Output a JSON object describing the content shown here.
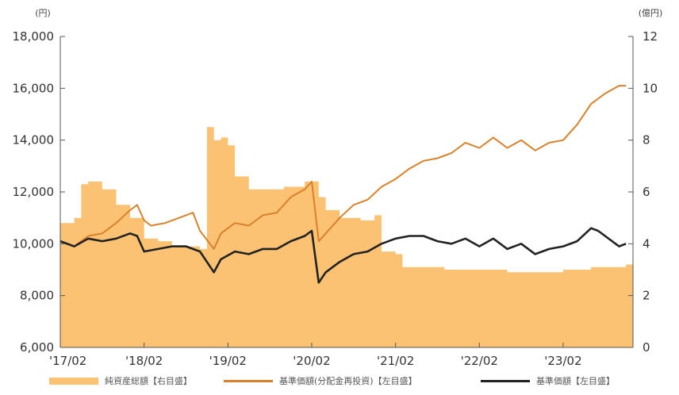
{
  "chart_data": {
    "type": "line",
    "x_ticks": [
      "'17/02",
      "'18/02",
      "'19/02",
      "'20/02",
      "'21/02",
      "'22/02",
      "'23/02"
    ],
    "y_left": {
      "unit_label": "(円)",
      "range": [
        6000,
        18000
      ],
      "ticks": [
        "6,000",
        "8,000",
        "10,000",
        "12,000",
        "14,000",
        "16,000",
        "18,000"
      ]
    },
    "y_right": {
      "unit_label": "(億円)",
      "range": [
        0,
        12
      ],
      "ticks": [
        "0",
        "2",
        "4",
        "6",
        "8",
        "10",
        "12"
      ]
    },
    "grid": false,
    "legend_position": "bottom",
    "series": [
      {
        "name": "純資産総額【右目盛】",
        "kind": "area",
        "axis": "right",
        "color": "#fbc273",
        "points": [
          [
            "2017-02",
            4.8
          ],
          [
            "2017-04",
            5.0
          ],
          [
            "2017-05",
            6.3
          ],
          [
            "2017-06",
            6.4
          ],
          [
            "2017-08",
            6.1
          ],
          [
            "2017-10",
            5.5
          ],
          [
            "2017-12",
            5.0
          ],
          [
            "2018-02",
            4.2
          ],
          [
            "2018-04",
            4.1
          ],
          [
            "2018-06",
            3.9
          ],
          [
            "2018-08",
            3.9
          ],
          [
            "2018-10",
            3.8
          ],
          [
            "2018-11",
            8.5
          ],
          [
            "2018-12",
            8.0
          ],
          [
            "2019-01",
            8.1
          ],
          [
            "2019-02",
            7.8
          ],
          [
            "2019-03",
            6.6
          ],
          [
            "2019-05",
            6.1
          ],
          [
            "2019-07",
            6.1
          ],
          [
            "2019-10",
            6.2
          ],
          [
            "2020-01",
            6.4
          ],
          [
            "2020-03",
            5.8
          ],
          [
            "2020-04",
            5.3
          ],
          [
            "2020-06",
            5.0
          ],
          [
            "2020-09",
            4.9
          ],
          [
            "2020-11",
            5.1
          ],
          [
            "2020-12",
            3.7
          ],
          [
            "2021-02",
            3.6
          ],
          [
            "2021-03",
            3.1
          ],
          [
            "2021-06",
            3.1
          ],
          [
            "2021-09",
            3.0
          ],
          [
            "2022-01",
            3.0
          ],
          [
            "2022-06",
            2.9
          ],
          [
            "2022-10",
            2.9
          ],
          [
            "2023-02",
            3.0
          ],
          [
            "2023-06",
            3.1
          ],
          [
            "2023-09",
            3.1
          ],
          [
            "2023-11",
            3.2
          ]
        ]
      },
      {
        "name": "基準価額(分配金再投資)【左目盛】",
        "kind": "line",
        "axis": "left",
        "color": "#d9822b",
        "points": [
          [
            "2017-02",
            10100
          ],
          [
            "2017-04",
            9900
          ],
          [
            "2017-06",
            10300
          ],
          [
            "2017-08",
            10400
          ],
          [
            "2017-10",
            10800
          ],
          [
            "2017-12",
            11300
          ],
          [
            "2018-01",
            11500
          ],
          [
            "2018-02",
            10900
          ],
          [
            "2018-03",
            10700
          ],
          [
            "2018-05",
            10800
          ],
          [
            "2018-07",
            11000
          ],
          [
            "2018-09",
            11200
          ],
          [
            "2018-10",
            10500
          ],
          [
            "2018-12",
            9800
          ],
          [
            "2019-01",
            10400
          ],
          [
            "2019-03",
            10800
          ],
          [
            "2019-05",
            10700
          ],
          [
            "2019-07",
            11100
          ],
          [
            "2019-09",
            11200
          ],
          [
            "2019-11",
            11800
          ],
          [
            "2020-01",
            12100
          ],
          [
            "2020-02",
            12400
          ],
          [
            "2020-03",
            10100
          ],
          [
            "2020-04",
            10400
          ],
          [
            "2020-06",
            11000
          ],
          [
            "2020-08",
            11500
          ],
          [
            "2020-10",
            11700
          ],
          [
            "2020-12",
            12200
          ],
          [
            "2021-02",
            12500
          ],
          [
            "2021-04",
            12900
          ],
          [
            "2021-06",
            13200
          ],
          [
            "2021-08",
            13300
          ],
          [
            "2021-10",
            13500
          ],
          [
            "2021-12",
            13900
          ],
          [
            "2022-02",
            13700
          ],
          [
            "2022-04",
            14100
          ],
          [
            "2022-06",
            13700
          ],
          [
            "2022-08",
            14000
          ],
          [
            "2022-10",
            13600
          ],
          [
            "2022-12",
            13900
          ],
          [
            "2023-02",
            14000
          ],
          [
            "2023-04",
            14600
          ],
          [
            "2023-06",
            15400
          ],
          [
            "2023-08",
            15800
          ],
          [
            "2023-10",
            16100
          ],
          [
            "2023-11",
            16100
          ]
        ]
      },
      {
        "name": "基準価額【左目盛】",
        "kind": "line",
        "axis": "left",
        "color": "#222222",
        "points": [
          [
            "2017-02",
            10100
          ],
          [
            "2017-04",
            9900
          ],
          [
            "2017-06",
            10200
          ],
          [
            "2017-08",
            10100
          ],
          [
            "2017-10",
            10200
          ],
          [
            "2017-12",
            10400
          ],
          [
            "2018-01",
            10300
          ],
          [
            "2018-02",
            9700
          ],
          [
            "2018-04",
            9800
          ],
          [
            "2018-06",
            9900
          ],
          [
            "2018-08",
            9900
          ],
          [
            "2018-10",
            9700
          ],
          [
            "2018-12",
            8900
          ],
          [
            "2019-01",
            9400
          ],
          [
            "2019-03",
            9700
          ],
          [
            "2019-05",
            9600
          ],
          [
            "2019-07",
            9800
          ],
          [
            "2019-09",
            9800
          ],
          [
            "2019-11",
            10100
          ],
          [
            "2020-01",
            10300
          ],
          [
            "2020-02",
            10500
          ],
          [
            "2020-03",
            8500
          ],
          [
            "2020-04",
            8900
          ],
          [
            "2020-06",
            9300
          ],
          [
            "2020-08",
            9600
          ],
          [
            "2020-10",
            9700
          ],
          [
            "2020-12",
            10000
          ],
          [
            "2021-02",
            10200
          ],
          [
            "2021-04",
            10300
          ],
          [
            "2021-06",
            10300
          ],
          [
            "2021-08",
            10100
          ],
          [
            "2021-10",
            10000
          ],
          [
            "2021-12",
            10200
          ],
          [
            "2022-02",
            9900
          ],
          [
            "2022-04",
            10200
          ],
          [
            "2022-06",
            9800
          ],
          [
            "2022-08",
            10000
          ],
          [
            "2022-10",
            9600
          ],
          [
            "2022-12",
            9800
          ],
          [
            "2023-02",
            9900
          ],
          [
            "2023-04",
            10100
          ],
          [
            "2023-06",
            10600
          ],
          [
            "2023-07",
            10500
          ],
          [
            "2023-08",
            10300
          ],
          [
            "2023-10",
            9900
          ],
          [
            "2023-11",
            10000
          ]
        ]
      }
    ]
  }
}
